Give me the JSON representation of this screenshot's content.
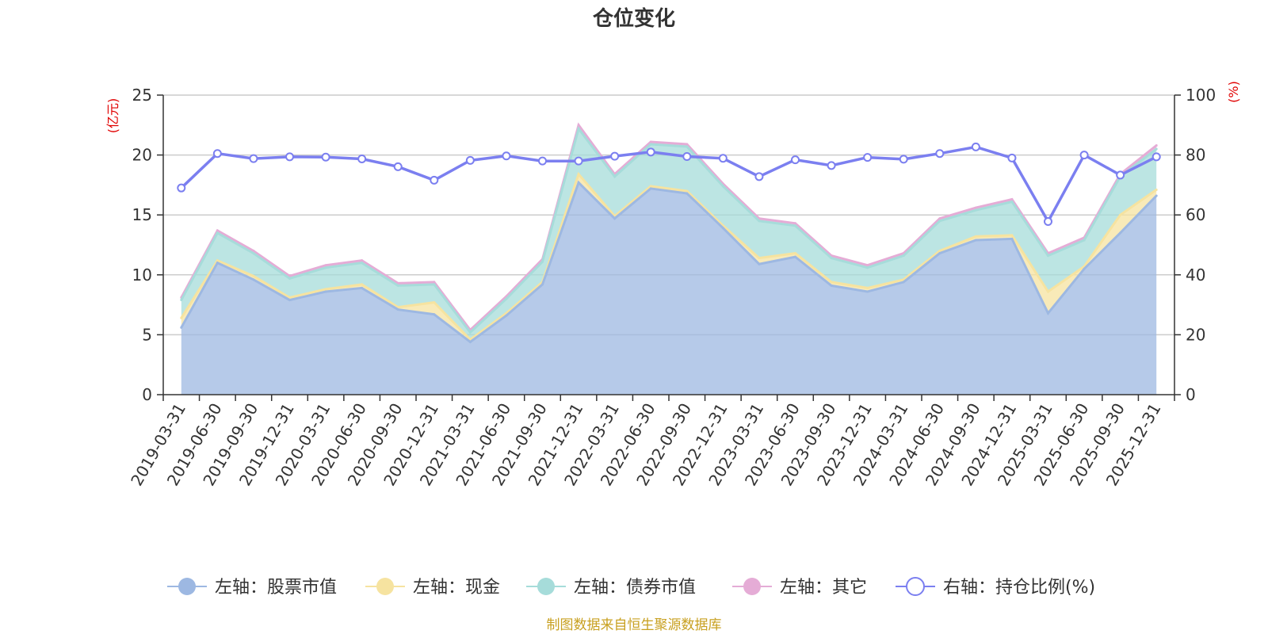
{
  "chart_data": {
    "type": "area",
    "title": "仓位变化",
    "categories": [
      "2019-03-31",
      "2019-06-30",
      "2019-09-30",
      "2019-12-31",
      "2020-03-31",
      "2020-06-30",
      "2020-09-30",
      "2020-12-31",
      "2021-03-31",
      "2021-06-30",
      "2021-09-30",
      "2021-12-31",
      "2022-03-31",
      "2022-06-30",
      "2022-09-30",
      "2022-12-31",
      "2023-03-31",
      "2023-06-30",
      "2023-09-30",
      "2023-12-31",
      "2024-03-31",
      "2024-06-30",
      "2024-09-30",
      "2024-12-31",
      "2025-03-31",
      "2025-06-30",
      "2025-09-30",
      "2025-12-31"
    ],
    "left_axis": {
      "unit_label": "(亿元)",
      "ylim": [
        0,
        25
      ],
      "ticks": [
        "0",
        "5",
        "10",
        "15",
        "20",
        "25"
      ]
    },
    "right_axis": {
      "unit_label": "(%)",
      "ylim": [
        0,
        100
      ],
      "ticks": [
        "0",
        "20",
        "40",
        "60",
        "80",
        "100"
      ]
    },
    "stacked": true,
    "series": [
      {
        "name": "左轴：股票市值",
        "axis": "left",
        "color": "#9db8e2",
        "values": [
          5.6,
          11.0,
          9.6,
          7.9,
          8.6,
          8.9,
          7.1,
          6.7,
          4.4,
          6.6,
          9.2,
          17.7,
          14.7,
          17.2,
          16.8,
          13.9,
          10.9,
          11.5,
          9.1,
          8.6,
          9.4,
          11.8,
          12.9,
          13.0,
          6.8,
          10.5,
          13.5,
          16.6
        ]
      },
      {
        "name": "左轴：现金",
        "axis": "left",
        "color": "#f6e3a0",
        "values": [
          0.8,
          0.2,
          0.3,
          0.2,
          0.2,
          0.3,
          0.2,
          1.0,
          0.2,
          0.2,
          0.2,
          0.7,
          0.2,
          0.2,
          0.2,
          0.2,
          0.5,
          0.3,
          0.3,
          0.3,
          0.2,
          0.2,
          0.3,
          0.3,
          1.8,
          0.2,
          1.5,
          0.5
        ]
      },
      {
        "name": "左轴：债券市值",
        "axis": "left",
        "color": "#a6dcda",
        "values": [
          1.5,
          2.3,
          1.9,
          1.6,
          1.8,
          1.8,
          1.8,
          1.5,
          0.6,
          1.2,
          1.7,
          3.8,
          3.3,
          3.5,
          3.7,
          3.3,
          3.1,
          2.3,
          2.0,
          1.7,
          2.0,
          2.5,
          2.2,
          2.8,
          3.0,
          2.2,
          3.2,
          3.4
        ]
      },
      {
        "name": "左轴：其它",
        "axis": "left",
        "color": "#e5acd6",
        "values": [
          0.2,
          0.2,
          0.2,
          0.2,
          0.2,
          0.2,
          0.2,
          0.2,
          0.2,
          0.2,
          0.2,
          0.3,
          0.2,
          0.2,
          0.2,
          0.2,
          0.2,
          0.2,
          0.2,
          0.2,
          0.2,
          0.2,
          0.2,
          0.2,
          0.2,
          0.2,
          0.2,
          0.3
        ]
      },
      {
        "name": "右轴：持仓比例(%)",
        "axis": "right",
        "type": "line",
        "color": "#7b7ff0",
        "values": [
          69,
          80.5,
          78.8,
          79.4,
          79.3,
          78.7,
          76.1,
          71.6,
          78.2,
          79.7,
          78.0,
          78.0,
          79.6,
          81.0,
          79.5,
          78.9,
          72.8,
          78.4,
          76.5,
          79.2,
          78.6,
          80.5,
          82.7,
          79.0,
          57.8,
          80.0,
          73.3,
          79.4
        ]
      }
    ],
    "grid": true,
    "legend_position": "bottom"
  },
  "footer": {
    "source": "制图数据来自恒生聚源数据库"
  }
}
